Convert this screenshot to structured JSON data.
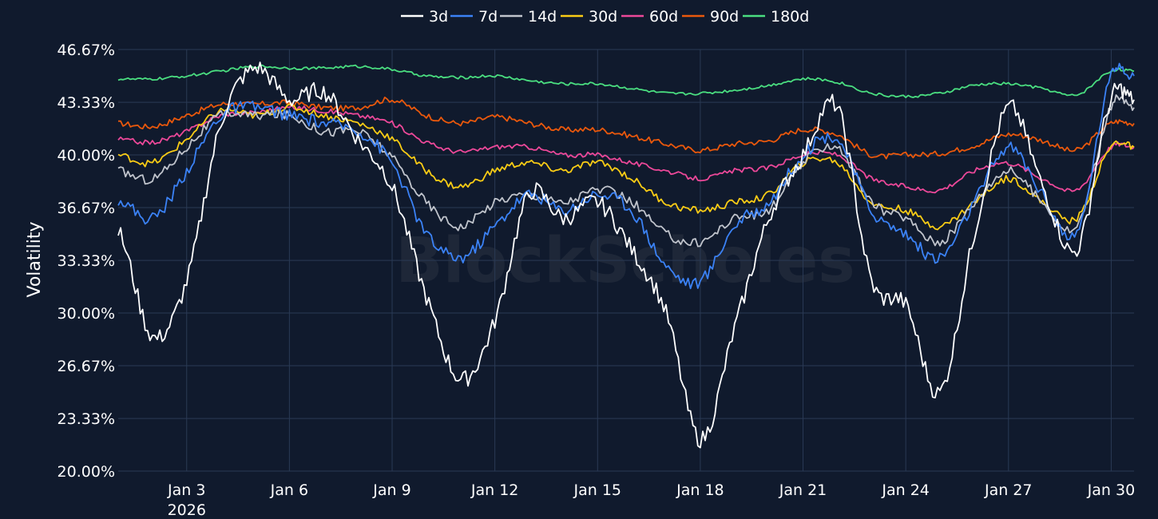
{
  "chart_data": {
    "type": "line",
    "title": "",
    "xlabel": "",
    "ylabel": "Volatility",
    "watermark": "BlockScholes",
    "ylim": [
      20.0,
      46.67
    ],
    "yticks": [
      "20.00%",
      "23.33%",
      "26.67%",
      "30.00%",
      "33.33%",
      "36.67%",
      "40.00%",
      "43.33%",
      "46.67%"
    ],
    "yticks_values": [
      20.0,
      23.33,
      26.67,
      30.0,
      33.33,
      36.67,
      40.0,
      43.33,
      46.67
    ],
    "xlim": [
      "2026-01-01T00:00",
      "2026-01-30T16:00"
    ],
    "xticks": [
      {
        "date": "2026-01-03",
        "label": "Jan 3",
        "sublabel": "2026"
      },
      {
        "date": "2026-01-06",
        "label": "Jan 6",
        "sublabel": ""
      },
      {
        "date": "2026-01-09",
        "label": "Jan 9",
        "sublabel": ""
      },
      {
        "date": "2026-01-12",
        "label": "Jan 12",
        "sublabel": ""
      },
      {
        "date": "2026-01-15",
        "label": "Jan 15",
        "sublabel": ""
      },
      {
        "date": "2026-01-18",
        "label": "Jan 18",
        "sublabel": ""
      },
      {
        "date": "2026-01-21",
        "label": "Jan 21",
        "sublabel": ""
      },
      {
        "date": "2026-01-24",
        "label": "Jan 24",
        "sublabel": ""
      },
      {
        "date": "2026-01-27",
        "label": "Jan 27",
        "sublabel": ""
      },
      {
        "date": "2026-01-30",
        "label": "Jan 30",
        "sublabel": ""
      }
    ],
    "grid": true,
    "legend_position": "top-center",
    "x": [
      "2026-01-01",
      "2026-01-02",
      "2026-01-03",
      "2026-01-04",
      "2026-01-05",
      "2026-01-06",
      "2026-01-07",
      "2026-01-08",
      "2026-01-09",
      "2026-01-10",
      "2026-01-11",
      "2026-01-12",
      "2026-01-13",
      "2026-01-14",
      "2026-01-15",
      "2026-01-16",
      "2026-01-17",
      "2026-01-18",
      "2026-01-19",
      "2026-01-20",
      "2026-01-21",
      "2026-01-22",
      "2026-01-23",
      "2026-01-24",
      "2026-01-25",
      "2026-01-26",
      "2026-01-27",
      "2026-01-28",
      "2026-01-29",
      "2026-01-30"
    ],
    "series": [
      {
        "name": "3d",
        "color": "#ffffff",
        "values": [
          35.2,
          28.5,
          32.0,
          42.0,
          45.5,
          43.5,
          44.0,
          41.0,
          38.0,
          31.0,
          25.8,
          29.5,
          37.5,
          36.0,
          37.0,
          34.0,
          30.0,
          22.0,
          29.0,
          36.0,
          40.0,
          43.0,
          32.0,
          30.5,
          25.0,
          35.0,
          43.0,
          38.0,
          34.0,
          43.5
        ]
      },
      {
        "name": "7d",
        "color": "#3b82f6",
        "values": [
          37.2,
          36.0,
          39.0,
          42.5,
          43.0,
          42.5,
          42.0,
          41.5,
          39.5,
          35.0,
          33.5,
          35.5,
          37.5,
          36.5,
          37.5,
          36.5,
          33.0,
          32.0,
          35.5,
          37.0,
          40.0,
          41.0,
          36.5,
          35.0,
          33.5,
          37.0,
          40.5,
          37.5,
          35.0,
          45.0
        ]
      },
      {
        "name": "14d",
        "color": "#c0c4cc",
        "values": [
          39.0,
          38.5,
          40.5,
          42.5,
          42.5,
          42.5,
          41.5,
          41.5,
          39.8,
          37.0,
          35.5,
          37.0,
          37.5,
          37.0,
          37.8,
          37.0,
          35.0,
          34.5,
          36.0,
          36.5,
          39.5,
          40.5,
          37.0,
          36.0,
          34.5,
          37.0,
          39.0,
          37.0,
          35.5,
          43.0
        ]
      },
      {
        "name": "30d",
        "color": "#facc15",
        "values": [
          40.0,
          39.5,
          41.0,
          42.8,
          42.5,
          43.0,
          42.5,
          42.0,
          41.0,
          39.0,
          38.0,
          39.0,
          39.5,
          39.0,
          39.5,
          38.5,
          37.0,
          36.5,
          37.0,
          37.5,
          39.5,
          39.5,
          37.0,
          36.5,
          35.5,
          37.0,
          38.5,
          37.0,
          36.0,
          40.5
        ]
      },
      {
        "name": "60d",
        "color": "#ec4899",
        "values": [
          41.0,
          40.8,
          41.5,
          42.5,
          42.7,
          43.0,
          42.8,
          42.5,
          42.0,
          40.8,
          40.2,
          40.5,
          40.5,
          40.0,
          40.0,
          39.5,
          39.0,
          38.5,
          39.0,
          39.2,
          40.0,
          40.0,
          38.5,
          38.0,
          37.8,
          39.0,
          39.5,
          38.5,
          37.8,
          40.5
        ]
      },
      {
        "name": "90d",
        "color": "#ea580c",
        "values": [
          42.0,
          41.8,
          42.5,
          43.2,
          43.2,
          43.3,
          43.0,
          43.0,
          43.5,
          42.5,
          42.0,
          42.4,
          42.0,
          41.6,
          41.6,
          41.2,
          40.7,
          40.3,
          40.7,
          40.9,
          41.6,
          41.3,
          40.0,
          40.0,
          40.1,
          40.6,
          41.3,
          40.9,
          40.3,
          42.0
        ]
      },
      {
        "name": "180d",
        "color": "#4ade80",
        "values": [
          44.8,
          44.8,
          45.0,
          45.3,
          45.6,
          45.5,
          45.5,
          45.6,
          45.4,
          45.0,
          44.9,
          45.0,
          44.7,
          44.5,
          44.5,
          44.2,
          43.9,
          43.9,
          44.1,
          44.4,
          44.8,
          44.6,
          43.9,
          43.7,
          43.9,
          44.4,
          44.5,
          44.2,
          43.8,
          45.3
        ]
      }
    ]
  }
}
